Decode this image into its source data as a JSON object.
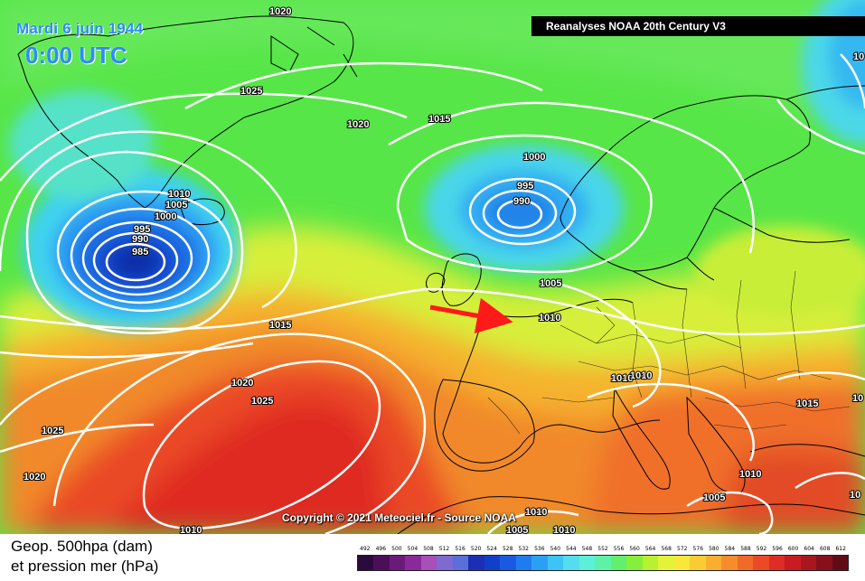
{
  "header": {
    "date": "Mardi 6 juin 1944",
    "time": "0:00 UTC",
    "source": "Reanalyses NOAA 20th Century V3"
  },
  "footer": {
    "copyright": "Copyright © 2021 Meteociel.fr - Source NOAA"
  },
  "legend": {
    "title_line1": "Geop. 500hpa (dam)",
    "title_line2": "et pression mer (hPa)",
    "ticks": [
      "492",
      "496",
      "500",
      "504",
      "508",
      "512",
      "516",
      "520",
      "524",
      "528",
      "532",
      "536",
      "540",
      "544",
      "548",
      "552",
      "556",
      "560",
      "564",
      "568",
      "572",
      "576",
      "580",
      "584",
      "588",
      "592",
      "596",
      "600",
      "604",
      "608",
      "612"
    ],
    "colors": [
      "#2b0a3d",
      "#4b0f5a",
      "#6a1b7a",
      "#8a2a9a",
      "#a84fb8",
      "#7e6ad0",
      "#5a6fd8",
      "#1c2fb4",
      "#1140c8",
      "#1a5ae0",
      "#1f7cf0",
      "#2aa0f5",
      "#3cc4f5",
      "#55dcef",
      "#5df0d8",
      "#5ef2a8",
      "#60ef6e",
      "#86ef3c",
      "#b8f032",
      "#e4f23a",
      "#f7e83a",
      "#f9cc33",
      "#f8ae2e",
      "#f58d2b",
      "#f06a28",
      "#ea4a26",
      "#df2c24",
      "#c61c22",
      "#a81620",
      "#86101c",
      "#600c16"
    ]
  },
  "isobars": [
    "1020",
    "1025",
    "1020",
    "1015",
    "1010",
    "1005",
    "1000",
    "995",
    "990",
    "985",
    "1000",
    "995",
    "990",
    "1005",
    "1010",
    "1015",
    "1020",
    "1025",
    "1025",
    "1020",
    "1010",
    "1010",
    "1015",
    "1010",
    "1005",
    "1010",
    "1010",
    "1005",
    "1010",
    "10",
    "10",
    "10"
  ],
  "colors": {
    "title_blue": "#2a8cff",
    "arrow": "#ff1a1a",
    "isobar": "#ffffff"
  }
}
